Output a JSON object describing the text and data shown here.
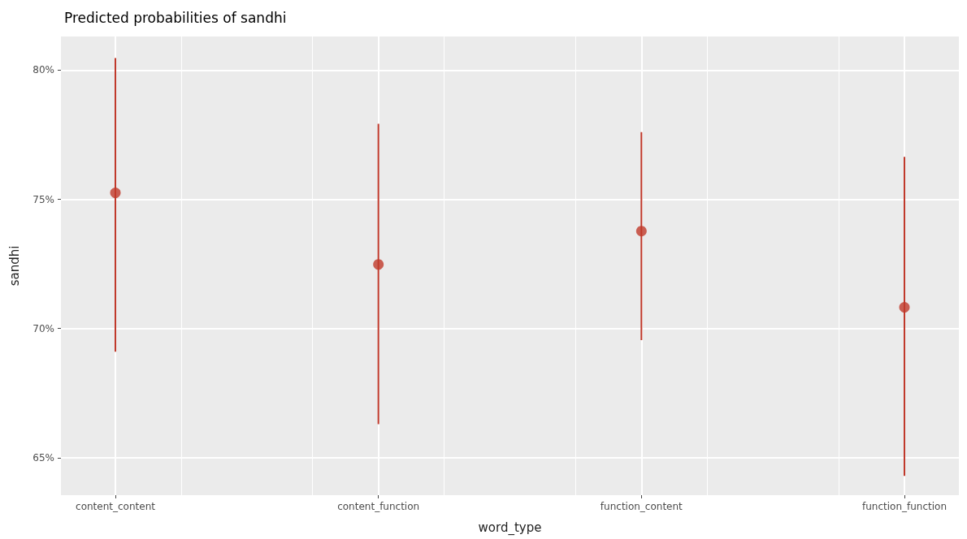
{
  "chart_data": {
    "type": "scatter",
    "title": "Predicted probabilities of sandhi",
    "xlabel": "word_type",
    "ylabel": "sandhi",
    "categories": [
      "content_content",
      "content_function",
      "function_content",
      "function_function"
    ],
    "series": [
      {
        "color": "#c0392b",
        "values": [
          75.25,
          72.48,
          73.77,
          70.82
        ],
        "errors": [
          [
            69.1,
            80.47
          ],
          [
            66.3,
            77.92
          ],
          [
            69.55,
            77.6
          ],
          [
            64.3,
            76.64
          ]
        ]
      }
    ],
    "ylim": [
      63.55,
      81.3
    ],
    "yticks": [
      {
        "value": 65,
        "label": "65%"
      },
      {
        "value": 70,
        "label": "70%"
      },
      {
        "value": 75,
        "label": "75%"
      },
      {
        "value": 80,
        "label": "80%"
      }
    ],
    "grid": true,
    "marker": "circle"
  }
}
